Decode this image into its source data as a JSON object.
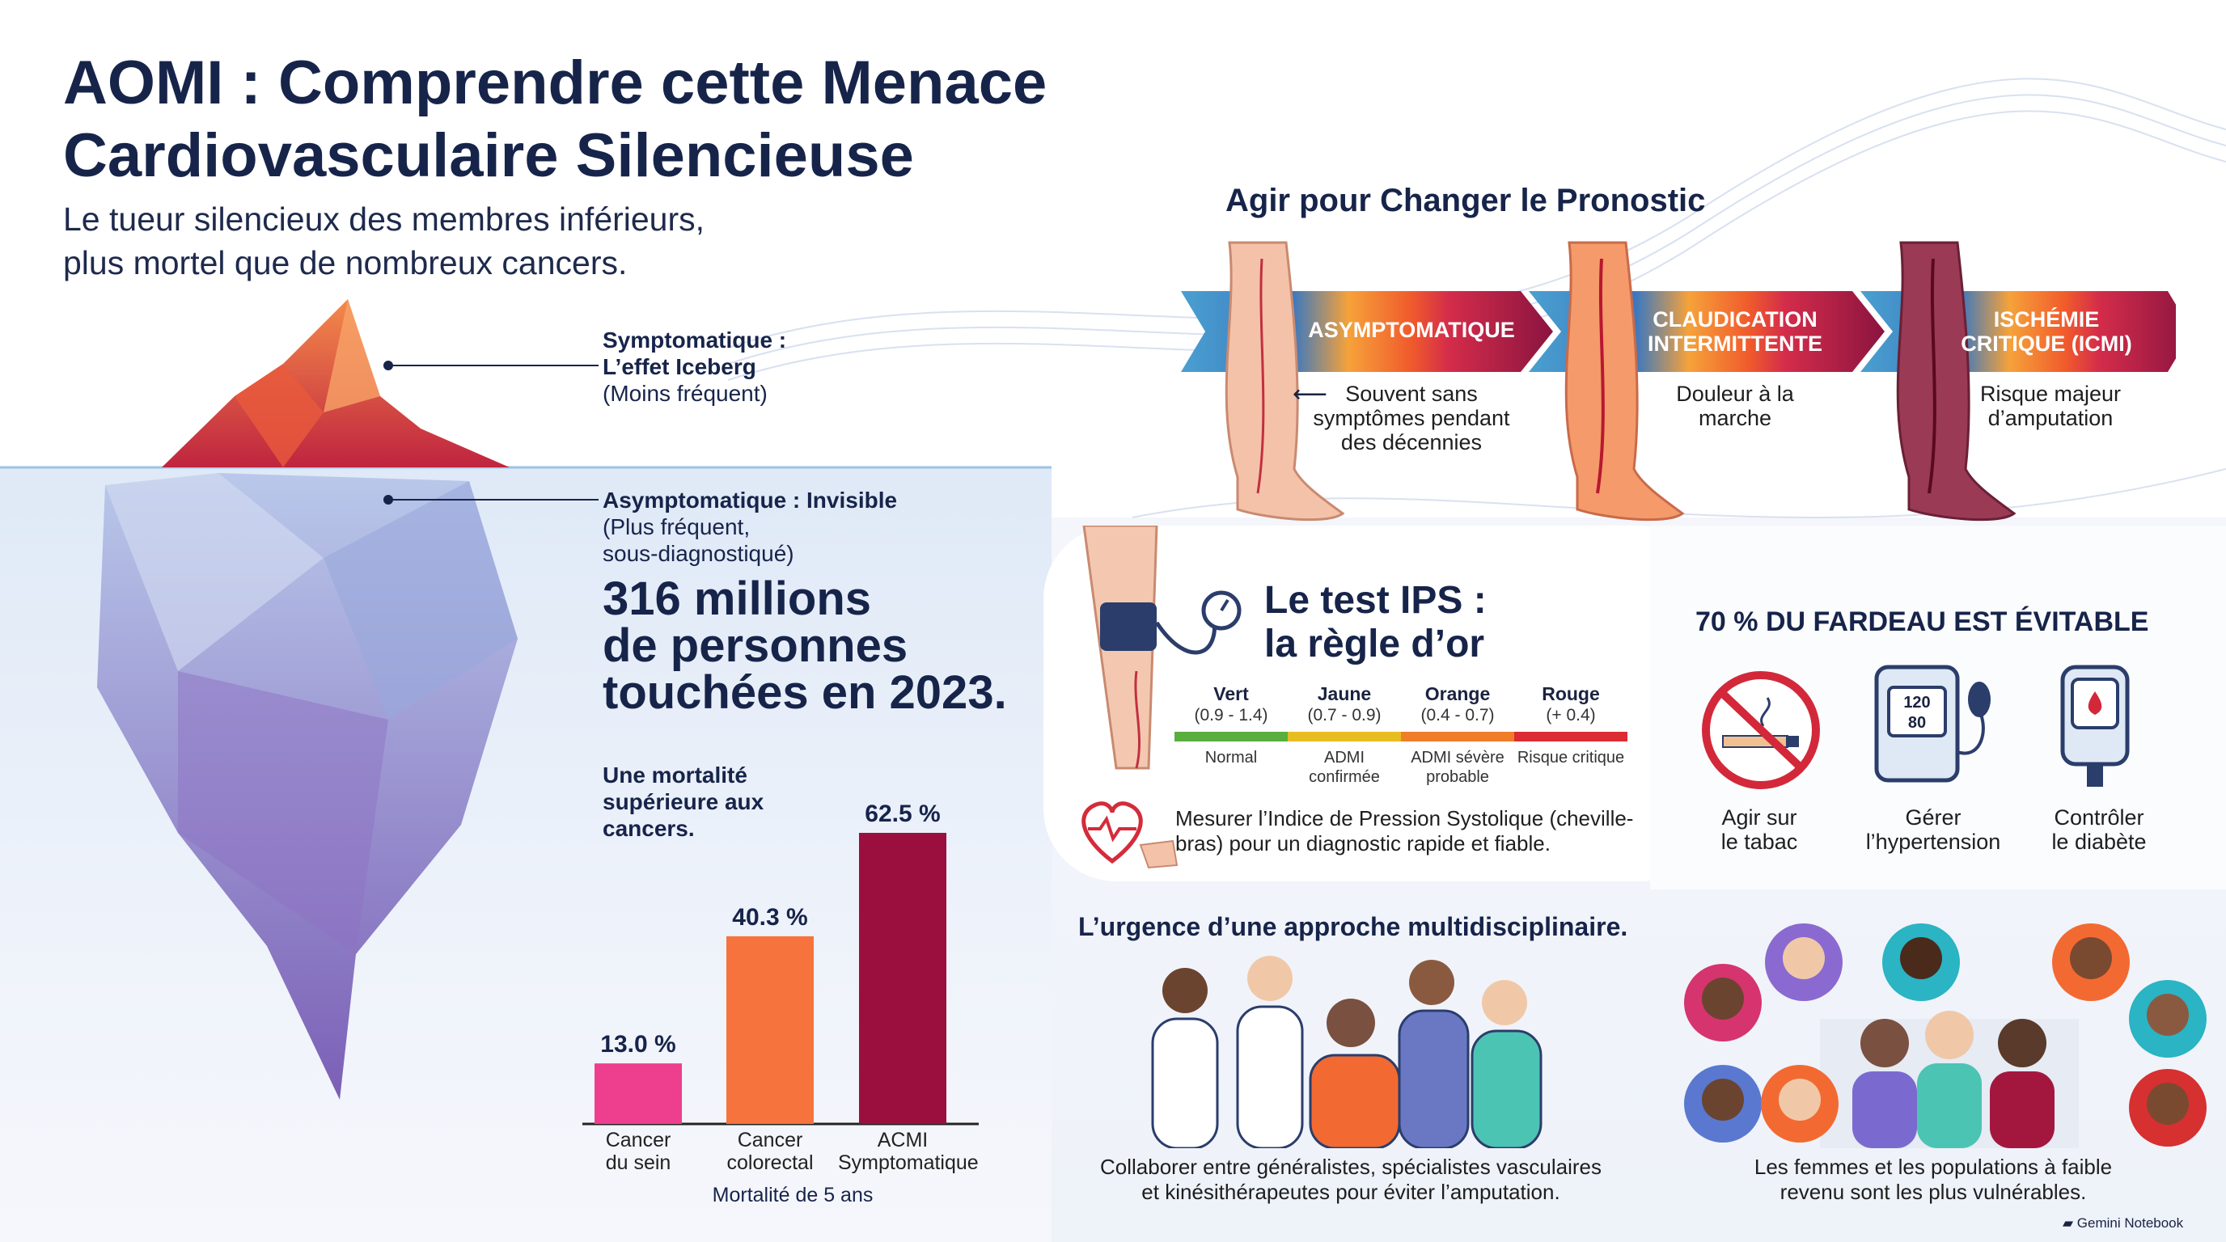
{
  "header": {
    "title_line1": "AOMI : Comprendre cette Menace",
    "title_line2": "Cardiovasculaire Silencieuse",
    "subtitle_line1": "Le tueur silencieux des membres inférieurs,",
    "subtitle_line2": "plus mortel que de nombreux cancers."
  },
  "iceberg": {
    "top_label_bold_1": "Symptomatique :",
    "top_label_bold_2": "L’effet Iceberg",
    "top_label_note": "(Moins fréquent)",
    "bottom_label_bold": "Asymptomatique : Invisible",
    "bottom_label_note_1": "(Plus fréquent,",
    "bottom_label_note_2": "sous-diagnostiqué)",
    "stat_line1": "316 millions",
    "stat_line2": "de personnes",
    "stat_line3": "touchées en 2023."
  },
  "chart_data": {
    "type": "bar",
    "title": "Une mortalité supérieure aux cancers.",
    "title_lines": [
      "Une mortalité",
      "supérieure aux",
      "cancers."
    ],
    "categories": [
      "Cancer du sein",
      "Cancer colorectal",
      "ACMI Symptomatique"
    ],
    "category_lines": [
      [
        "Cancer",
        "du sein"
      ],
      [
        "Cancer",
        "colorectal"
      ],
      [
        "ACMI",
        "Symptomatique"
      ]
    ],
    "values": [
      13.0,
      40.3,
      62.5
    ],
    "value_labels": [
      "13.0 %",
      "40.3 %",
      "62.5 %"
    ],
    "colors": [
      "#ee3f8f",
      "#f7733d",
      "#9b0f3e"
    ],
    "xlabel": "Mortalité de 5 ans",
    "ylabel": "",
    "ylim": [
      0,
      62.5
    ],
    "grid": false
  },
  "prognosis": {
    "title": "Agir pour Changer le Pronostic",
    "stages": [
      {
        "label": "ASYMPTOMATIQUE",
        "desc": [
          "Souvent sans",
          "symptômes pendant",
          "des décennies"
        ],
        "color": "#3b84c4"
      },
      {
        "label_lines": [
          "CLAUDICATION",
          "INTERMITTENTE"
        ],
        "desc": [
          "Douleur à la",
          "marche"
        ],
        "color": "#f26a32"
      },
      {
        "label_lines": [
          "ISCHÉMIE",
          "CRITIQUE (ICMI)"
        ],
        "desc": [
          "Risque majeur",
          "d’amputation"
        ],
        "color": "#a3173f"
      }
    ],
    "arrow_glyph": "⟵"
  },
  "ips": {
    "title_line1": "Le test IPS :",
    "title_line2": "la règle d’or",
    "zones": [
      {
        "name": "Vert",
        "range": "(0.9 - 1.4)",
        "desc": [
          "Normal"
        ],
        "color": "#5aae3e"
      },
      {
        "name": "Jaune",
        "range": "(0.7 - 0.9)",
        "desc": [
          "ADMI",
          "confirmée"
        ],
        "color": "#e8bd22"
      },
      {
        "name": "Orange",
        "range": "(0.4 - 0.7)",
        "desc": [
          "ADMI sévère",
          "probable"
        ],
        "color": "#ef7d2a"
      },
      {
        "name": "Rouge",
        "range": "(+ 0.4)",
        "desc": [
          "Risque critique"
        ],
        "color": "#db2c33"
      }
    ],
    "note_line1": "Mesurer l’Indice de Pression Systolique (cheville-",
    "note_line2": "bras) pour un diagnostic rapide et fiable."
  },
  "prevention": {
    "title": "70 % DU FARDEAU EST ÉVITABLE",
    "items": [
      {
        "icon": "no-smoking-icon",
        "lines": [
          "Agir sur",
          "le tabac"
        ]
      },
      {
        "icon": "blood-pressure-monitor-icon",
        "lines": [
          "Gérer",
          "l’hypertension"
        ],
        "screen_top": "120",
        "screen_bottom": "80"
      },
      {
        "icon": "glucose-meter-icon",
        "lines": [
          "Contrôler",
          "le diabète"
        ]
      }
    ]
  },
  "team": {
    "title": "L’urgence d’une approche multidisciplinaire.",
    "caption_line1": "Collaborer entre généralistes, spécialistes vasculaires",
    "caption_line2": "et kinésithérapeutes pour éviter l’amputation."
  },
  "populations": {
    "caption_line1": "Les femmes et les populations à faible",
    "caption_line2": "revenu sont les plus vulnérables."
  },
  "footer": {
    "brand": "Gemini Notebook"
  }
}
